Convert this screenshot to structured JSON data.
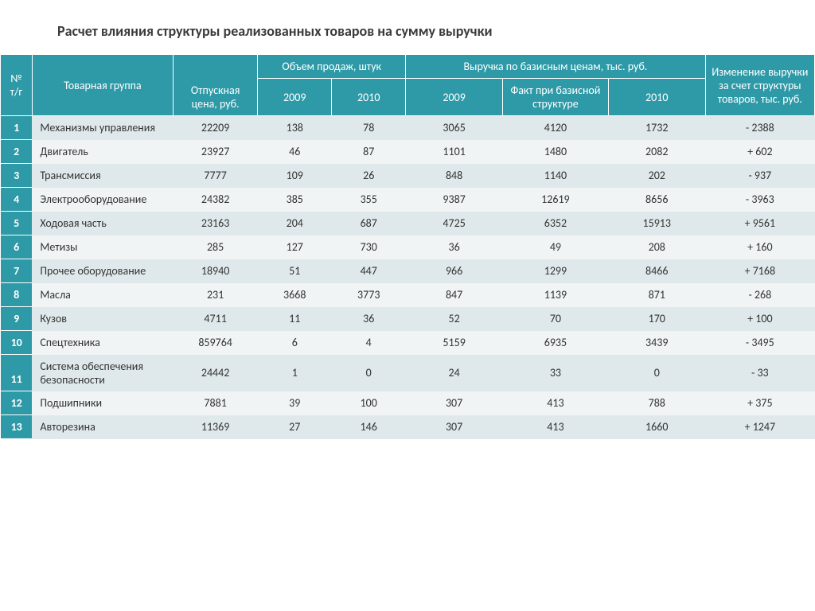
{
  "title": "Расчет влияния структуры реализованных товаров на сумму выручки",
  "table": {
    "header": {
      "num": "№ т/г",
      "group": "Товарная группа",
      "price": "Отпускная цена, руб.",
      "volume_group": "Объем продаж, штук",
      "revenue_group": "Выручка по базисным ценам, тыс. руб.",
      "change": "Изменение выручки за счет структуры товаров, тыс. руб.",
      "y2009": "2009",
      "y2010": "2010",
      "fact": "Факт при базисной структуре"
    },
    "rows": [
      {
        "n": "1",
        "name": "Механизмы управления",
        "price": "22209",
        "v09": "138",
        "v10": "78",
        "r09": "3065",
        "fact": "4120",
        "r10": "1732",
        "chg": "- 2388"
      },
      {
        "n": "2",
        "name": "Двигатель",
        "price": "23927",
        "v09": "46",
        "v10": "87",
        "r09": "1101",
        "fact": "1480",
        "r10": "2082",
        "chg": "+ 602"
      },
      {
        "n": "3",
        "name": "Трансмиссия",
        "price": "7777",
        "v09": "109",
        "v10": "26",
        "r09": "848",
        "fact": "1140",
        "r10": "202",
        "chg": "- 937"
      },
      {
        "n": "4",
        "name": "Электрооборудование",
        "price": "24382",
        "v09": "385",
        "v10": "355",
        "r09": "9387",
        "fact": "12619",
        "r10": "8656",
        "chg": "- 3963"
      },
      {
        "n": "5",
        "name": "Ходовая часть",
        "price": "23163",
        "v09": "204",
        "v10": "687",
        "r09": "4725",
        "fact": "6352",
        "r10": "15913",
        "chg": "+ 9561"
      },
      {
        "n": "6",
        "name": "Метизы",
        "price": "285",
        "v09": "127",
        "v10": "730",
        "r09": "36",
        "fact": "49",
        "r10": "208",
        "chg": "+ 160"
      },
      {
        "n": "7",
        "name": "Прочее оборудование",
        "price": "18940",
        "v09": "51",
        "v10": "447",
        "r09": "966",
        "fact": "1299",
        "r10": "8466",
        "chg": "+ 7168"
      },
      {
        "n": "8",
        "name": "Масла",
        "price": "231",
        "v09": "3668",
        "v10": "3773",
        "r09": "847",
        "fact": "1139",
        "r10": "871",
        "chg": "- 268"
      },
      {
        "n": "9",
        "name": "Кузов",
        "price": "4711",
        "v09": "11",
        "v10": "36",
        "r09": "52",
        "fact": "70",
        "r10": "170",
        "chg": "+ 100"
      },
      {
        "n": "10",
        "name": "Спецтехника",
        "price": "859764",
        "v09": "6",
        "v10": "4",
        "r09": "5159",
        "fact": "6935",
        "r10": "3439",
        "chg": "- 3495"
      },
      {
        "n": "11",
        "name": "Система обеспечения безопасности",
        "price": "24442",
        "v09": "1",
        "v10": "0",
        "r09": "24",
        "fact": "33",
        "r10": "0",
        "chg": "- 33"
      },
      {
        "n": "12",
        "name": "Подшипники",
        "price": "7881",
        "v09": "39",
        "v10": "100",
        "r09": "307",
        "fact": "413",
        "r10": "788",
        "chg": "+ 375"
      },
      {
        "n": "13",
        "name": "Авторезина",
        "price": "11369",
        "v09": "27",
        "v10": "146",
        "r09": "307",
        "fact": "413",
        "r10": "1660",
        "chg": "+ 1247"
      }
    ]
  },
  "style": {
    "header_bg": "#2e9aa8",
    "header_fg": "#ffffff",
    "row_odd_bg": "#dfe9ec",
    "row_even_bg": "#f0f4f5",
    "title_color": "#3a3a3a",
    "title_fontsize": 18,
    "body_fontsize": 14
  }
}
